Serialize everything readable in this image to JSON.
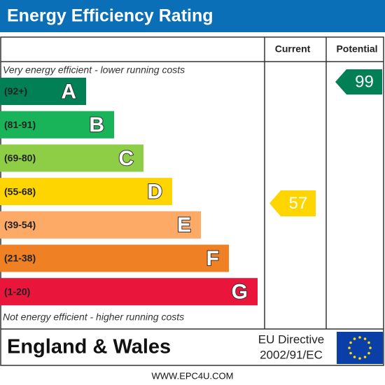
{
  "header": {
    "title": "Energy Efficiency Rating"
  },
  "columns": [
    "Current",
    "Potential"
  ],
  "top_note": "Very energy efficient - lower running costs",
  "bottom_note": "Not energy efficient - higher running costs",
  "bands": [
    {
      "range": "(92+)",
      "letter": "A",
      "color": "#008054"
    },
    {
      "range": "(81-91)",
      "letter": "B",
      "color": "#19b459"
    },
    {
      "range": "(69-80)",
      "letter": "C",
      "color": "#8dce46"
    },
    {
      "range": "(55-68)",
      "letter": "D",
      "color": "#ffd500"
    },
    {
      "range": "(39-54)",
      "letter": "E",
      "color": "#fcaa65"
    },
    {
      "range": "(21-38)",
      "letter": "F",
      "color": "#ef8023"
    },
    {
      "range": "(1-20)",
      "letter": "G",
      "color": "#e9153b"
    }
  ],
  "current": {
    "value": 57,
    "color": "#ffd500"
  },
  "potential": {
    "value": 99,
    "color": "#008054"
  },
  "footer": {
    "region": "England & Wales",
    "directive": [
      "EU Directive",
      "2002/91/EC"
    ]
  },
  "website": "WWW.EPC4U.COM"
}
